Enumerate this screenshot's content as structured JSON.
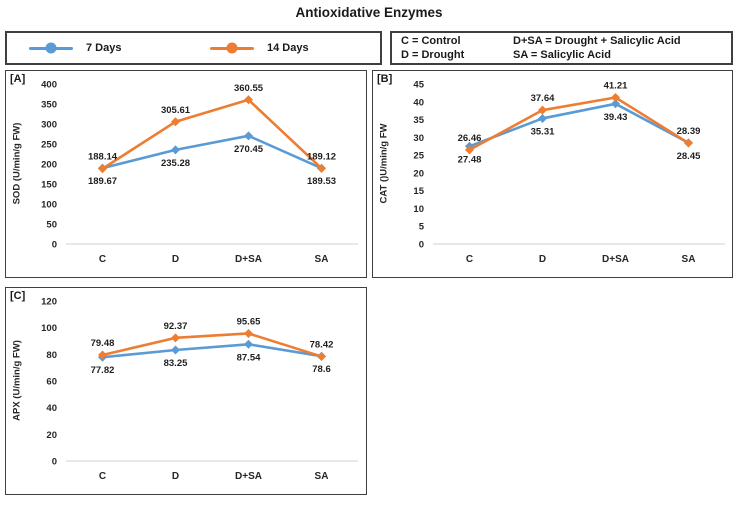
{
  "title": "Antioxidative Enzymes",
  "colors": {
    "series_7_days": "#5B9BD5",
    "series_14_days": "#ED7D31",
    "axis_line": "#d9d9d9",
    "box_border": "#3f3f3f"
  },
  "series_legend": {
    "items": [
      {
        "label": "7 Days",
        "color": "#5B9BD5"
      },
      {
        "label": "14 Days",
        "color": "#ED7D31"
      }
    ]
  },
  "abbr_legend": {
    "col1": [
      "C = Control",
      "D = Drought"
    ],
    "col2": [
      "D+SA = Drought + Salicylic Acid",
      "SA = Salicylic Acid"
    ]
  },
  "chart_data": [
    {
      "type": "line",
      "panel_label": "[A]",
      "ylabel": "SOD (U/min/g FW)",
      "xlabel": "",
      "categories": [
        "C",
        "D",
        "D+SA",
        "SA"
      ],
      "ylim": [
        0,
        400
      ],
      "ytick_step": 50,
      "grid": false,
      "legend_position": "top-shared",
      "series": [
        {
          "name": "7 Days",
          "color": "#5B9BD5",
          "label_position": "below",
          "values": [
            189.67,
            235.28,
            270.45,
            189.53
          ],
          "labels": [
            "189.67",
            "235.28",
            "270.45",
            "189.53"
          ]
        },
        {
          "name": "14 Days",
          "color": "#ED7D31",
          "label_position": "above",
          "values": [
            188.14,
            305.61,
            360.55,
            189.12
          ],
          "labels": [
            "188.14",
            "305.61",
            "360.55",
            "189.12"
          ]
        }
      ]
    },
    {
      "type": "line",
      "panel_label": "[B]",
      "ylabel": "CAT ()U/min/g FW",
      "xlabel": "",
      "categories": [
        "C",
        "D",
        "D+SA",
        "SA"
      ],
      "ylim": [
        0,
        45
      ],
      "ytick_step": 5,
      "grid": false,
      "legend_position": "top-shared",
      "series": [
        {
          "name": "7 Days",
          "color": "#5B9BD5",
          "label_position": "below",
          "values": [
            27.48,
            35.31,
            39.43,
            28.45
          ],
          "labels": [
            "27.48",
            "35.31",
            "39.43",
            "28.45"
          ]
        },
        {
          "name": "14 Days",
          "color": "#ED7D31",
          "label_position": "above",
          "values": [
            26.46,
            37.64,
            41.21,
            28.39
          ],
          "labels": [
            "26.46",
            "37.64",
            "41.21",
            "28.39"
          ]
        }
      ]
    },
    {
      "type": "line",
      "panel_label": "[C]",
      "ylabel": "APX (U/min/g FW)",
      "xlabel": "",
      "categories": [
        "C",
        "D",
        "D+SA",
        "SA"
      ],
      "ylim": [
        0,
        120
      ],
      "ytick_step": 20,
      "grid": false,
      "legend_position": "top-shared",
      "series": [
        {
          "name": "7 Days",
          "color": "#5B9BD5",
          "label_position": "below",
          "values": [
            77.82,
            83.25,
            87.54,
            78.6
          ],
          "labels": [
            "77.82",
            "83.25",
            "87.54",
            "78.6"
          ]
        },
        {
          "name": "14 Days",
          "color": "#ED7D31",
          "label_position": "above",
          "values": [
            79.48,
            92.37,
            95.65,
            78.42
          ],
          "labels": [
            "79.48",
            "92.37",
            "95.65",
            "78.42"
          ]
        }
      ]
    }
  ]
}
